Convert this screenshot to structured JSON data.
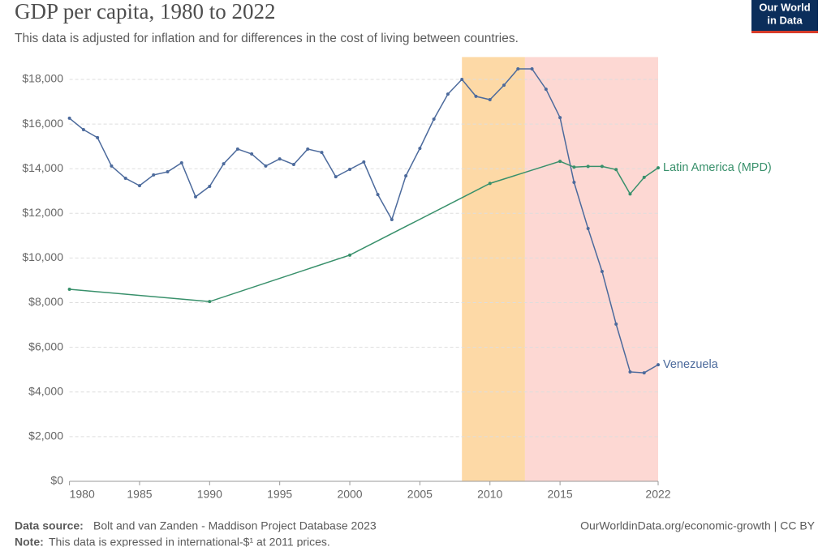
{
  "chart_data": {
    "type": "line",
    "title": "GDP per capita, 1980 to 2022",
    "subtitle": "This data is adjusted for inflation and for differences in the cost of living between countries.",
    "logo": [
      "Our World",
      "in Data"
    ],
    "source_label": "Data source:",
    "source": "Bolt and van Zanden - Maddison Project Database 2023",
    "url": "OurWorldinData.org/economic-growth | CC BY",
    "note_label": "Note:",
    "note": "This data is expressed in international-$¹ at 2011 prices.",
    "xlim": [
      1980,
      2022
    ],
    "xticks": [
      1980,
      1985,
      1990,
      1995,
      2000,
      2005,
      2010,
      2015,
      2022
    ],
    "ylim": [
      0,
      19000
    ],
    "yticks": [
      {
        "value": 0,
        "label": "$0"
      },
      {
        "value": 2000,
        "label": "$2,000"
      },
      {
        "value": 4000,
        "label": "$4,000"
      },
      {
        "value": 6000,
        "label": "$6,000"
      },
      {
        "value": 8000,
        "label": "$8,000"
      },
      {
        "value": 10000,
        "label": "$10,000"
      },
      {
        "value": 12000,
        "label": "$12,000"
      },
      {
        "value": 14000,
        "label": "$14,000"
      },
      {
        "value": 16000,
        "label": "$16,000"
      },
      {
        "value": 18000,
        "label": "$18,000"
      }
    ],
    "grid": true,
    "legend": "line-end",
    "bands": [
      {
        "from": 2008,
        "to": 2012.5,
        "color": "#fdd9a6"
      },
      {
        "from": 2012.5,
        "to": 2022,
        "color": "#fdd8d3"
      }
    ],
    "series": [
      {
        "name": "Venezuela",
        "color": "#4c6a9c",
        "x": [
          1980,
          1981,
          1982,
          1983,
          1984,
          1985,
          1986,
          1987,
          1988,
          1989,
          1990,
          1991,
          1992,
          1993,
          1994,
          1995,
          1996,
          1997,
          1998,
          1999,
          2000,
          2001,
          2002,
          2003,
          2004,
          2005,
          2006,
          2007,
          2008,
          2009,
          2010,
          2011,
          2012,
          2013,
          2014,
          2015,
          2016,
          2017,
          2018,
          2019,
          2020,
          2021,
          2022
        ],
        "values": [
          16260,
          15750,
          15390,
          14120,
          13570,
          13240,
          13720,
          13860,
          14260,
          12740,
          13210,
          14220,
          14880,
          14660,
          14120,
          14440,
          14190,
          14880,
          14730,
          13640,
          13970,
          14300,
          12840,
          11720,
          13680,
          14910,
          16220,
          17340,
          18000,
          17240,
          17090,
          17740,
          18470,
          18470,
          17560,
          16290,
          13390,
          11320,
          9400,
          7040,
          4900,
          4860,
          5220
        ]
      },
      {
        "name": "Latin America (MPD)",
        "color": "#38906b",
        "x": [
          1980,
          1990,
          2000,
          2010,
          2015,
          2016,
          2017,
          2018,
          2019,
          2020,
          2021,
          2022
        ],
        "values": [
          8600,
          8050,
          10130,
          13340,
          14330,
          14070,
          14100,
          14100,
          13960,
          12870,
          13610,
          14040
        ]
      }
    ]
  }
}
